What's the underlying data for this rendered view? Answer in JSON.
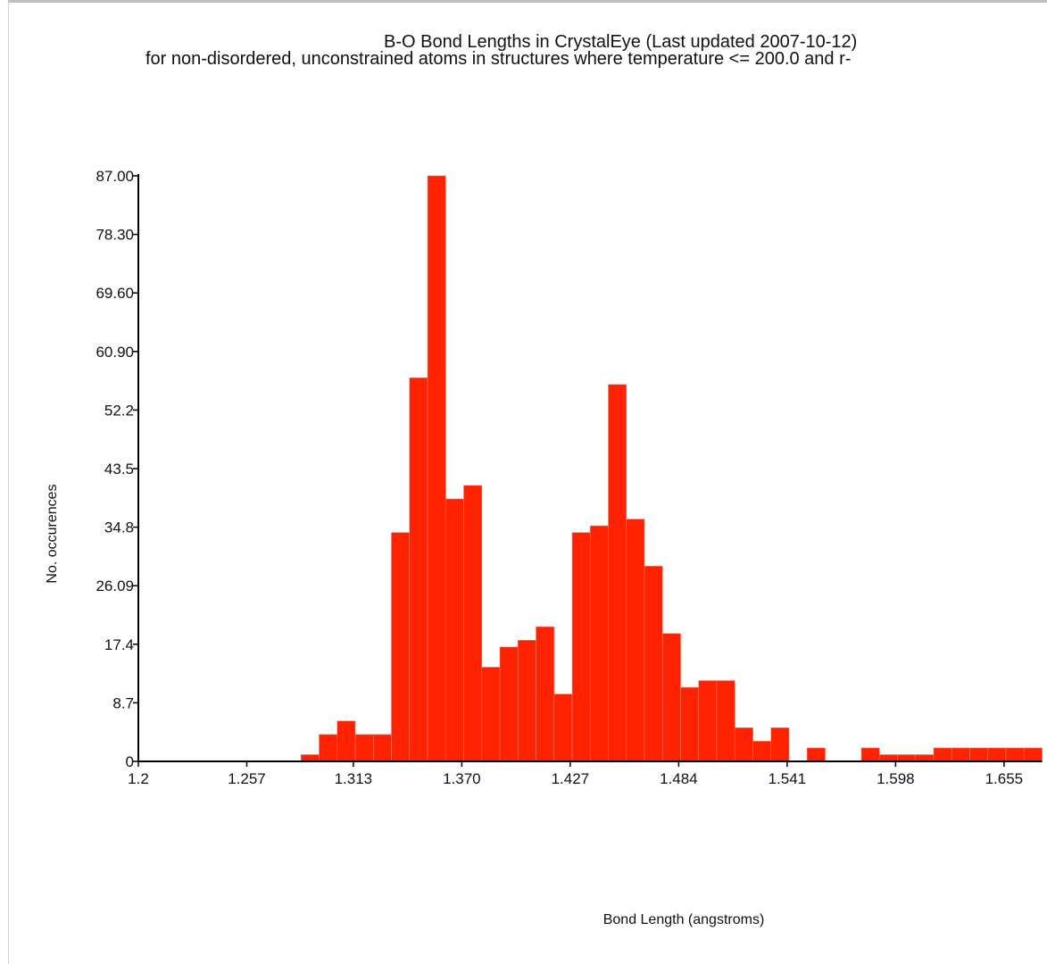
{
  "chart_data": {
    "type": "bar",
    "title": "B-O Bond Lengths in CrystalEye (Last updated 2007-10-12)",
    "subtitle": "for non-disordered, unconstrained atoms in structures where temperature <= 200.0 and r-",
    "xlabel": "Bond Length (angstroms)",
    "ylabel": "No. occurences",
    "xlim": [
      1.2,
      1.675
    ],
    "ylim": [
      0,
      87
    ],
    "x_ticks": [
      "1.2",
      "1.257",
      "1.313",
      "1.370",
      "1.427",
      "1.484",
      "1.541",
      "1.598",
      "1.655"
    ],
    "y_ticks": [
      "0",
      "8.7",
      "17.4",
      "26.09",
      "34.8",
      "43.5",
      "52.2",
      "60.90",
      "69.60",
      "78.30",
      "87.00"
    ],
    "bin_width": 0.0095,
    "bins_start": [
      1.2855,
      1.295,
      1.3045,
      1.314,
      1.3235,
      1.333,
      1.3425,
      1.352,
      1.3615,
      1.371,
      1.3805,
      1.39,
      1.3995,
      1.409,
      1.4185,
      1.428,
      1.4375,
      1.447,
      1.4565,
      1.466,
      1.4755,
      1.485,
      1.4945,
      1.504,
      1.5135,
      1.523,
      1.5325,
      1.542,
      1.5515,
      1.561,
      1.5705,
      1.58,
      1.5895,
      1.599,
      1.6085,
      1.618,
      1.6275,
      1.637,
      1.6465,
      1.656,
      1.6655
    ],
    "values": [
      1,
      4,
      6,
      4,
      4,
      34,
      57,
      87,
      39,
      41,
      14,
      17,
      18,
      20,
      10,
      34,
      35,
      56,
      36,
      29,
      19,
      11,
      12,
      12,
      5,
      3,
      5,
      0,
      2,
      0,
      0,
      2,
      1,
      1,
      1,
      2,
      2,
      2,
      2,
      2,
      2
    ],
    "bar_color": "#ff2200",
    "bar_edge_color": "#ff7a66",
    "axis_color": "#000000",
    "grid": false,
    "legend": "none"
  }
}
